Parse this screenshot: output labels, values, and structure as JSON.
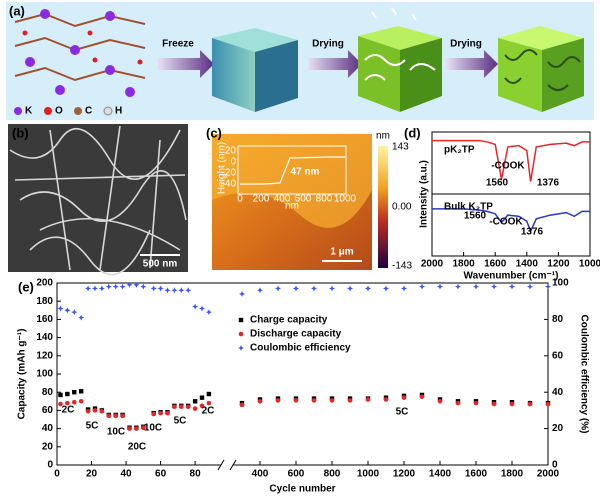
{
  "figure": {
    "a": {
      "label": "(a)",
      "steps": [
        "Freeze",
        "Drying",
        "Drying"
      ],
      "legend": [
        "K",
        "O",
        "C",
        "H"
      ]
    },
    "b": {
      "label": "(b)",
      "scale_bar": "500 nm"
    },
    "c": {
      "label": "(c)",
      "colorbar_unit": "nm",
      "colorbar_labels": [
        "143",
        "0.00",
        "-143"
      ],
      "scale_bar": "1 μm",
      "inset": {
        "ylabel": "Height (nm)",
        "yticks": [
          "20",
          "0",
          "-20",
          "-40"
        ],
        "xticks": [
          "0",
          "200",
          "400",
          "600",
          "800",
          "1000"
        ],
        "xlabel": "nm",
        "annotation": "47 nm"
      }
    }
  },
  "chart_data": [
    {
      "type": "line",
      "panel_label": "(d)",
      "xlabel": "Wavenumber (cm⁻¹)",
      "ylabel": "Intensity (a.u.)",
      "x": [
        2000,
        1900,
        1800,
        1700,
        1650,
        1600,
        1560,
        1520,
        1450,
        1400,
        1376,
        1340,
        1250,
        1150,
        1100,
        1050,
        1000
      ],
      "xlim": [
        2000,
        1000
      ],
      "xticks": [
        2000,
        1800,
        1600,
        1400,
        1200,
        1000
      ],
      "ylim": [
        0,
        1
      ],
      "series": [
        {
          "name": "pK₂TP",
          "color": "#e8262a",
          "values": [
            0.93,
            0.93,
            0.93,
            0.93,
            0.92,
            0.9,
            0.62,
            0.88,
            0.89,
            0.85,
            0.6,
            0.88,
            0.9,
            0.91,
            0.89,
            0.92,
            0.92
          ]
        },
        {
          "name": "Bulk K₂TP",
          "color": "#2b35c8",
          "values": [
            0.38,
            0.38,
            0.38,
            0.37,
            0.36,
            0.34,
            0.27,
            0.33,
            0.32,
            0.28,
            0.2,
            0.3,
            0.33,
            0.35,
            0.32,
            0.36,
            0.36
          ]
        }
      ],
      "annotations": [
        "-COOK",
        "1560",
        "1376",
        "1560",
        "-COOK",
        "1376"
      ]
    },
    {
      "type": "scatter",
      "panel_label": "(e)",
      "xlabel": "Cycle number",
      "ylabel": "Capacity (mAh g⁻¹)",
      "y2label": "Coulombic efficiency (%)",
      "x": [
        2,
        6,
        10,
        14,
        18,
        22,
        26,
        30,
        34,
        38,
        42,
        46,
        50,
        56,
        60,
        64,
        68,
        72,
        76,
        80,
        84,
        88,
        300,
        400,
        500,
        600,
        700,
        800,
        900,
        1000,
        1100,
        1200,
        1300,
        1400,
        1500,
        1600,
        1700,
        1800,
        1900,
        2000
      ],
      "xlim": [
        0,
        2000
      ],
      "xbreak": [
        95,
        250
      ],
      "xticks": [
        0,
        20,
        40,
        60,
        80,
        400,
        600,
        800,
        1000,
        1200,
        1400,
        1600,
        1800,
        2000
      ],
      "ylim": [
        0,
        200
      ],
      "yticks": [
        0,
        20,
        40,
        60,
        80,
        100,
        120,
        140,
        160,
        180,
        200
      ],
      "y2lim": [
        0,
        100
      ],
      "y2ticks": [
        0,
        20,
        40,
        60,
        80,
        100
      ],
      "series": [
        {
          "name": "Charge capacity",
          "color": "#000000",
          "marker": "square",
          "values": [
            77,
            78,
            80,
            81,
            61,
            62,
            60,
            55,
            55,
            55,
            41,
            41,
            42,
            57,
            58,
            58,
            65,
            65,
            65,
            70,
            74,
            78,
            68,
            72,
            73,
            73,
            73,
            73,
            73,
            73,
            74,
            76,
            77,
            72,
            70,
            70,
            69,
            69,
            68,
            68
          ]
        },
        {
          "name": "Discharge capacity",
          "color": "#e8262a",
          "marker": "circle",
          "values": [
            67,
            68,
            69,
            70,
            59,
            60,
            59,
            54,
            54,
            54,
            40,
            40,
            41,
            56,
            57,
            57,
            64,
            64,
            64,
            62,
            65,
            68,
            66,
            70,
            71,
            71,
            71,
            71,
            71,
            72,
            72,
            74,
            75,
            70,
            68,
            68,
            67,
            67,
            67,
            67
          ]
        },
        {
          "name": "Coulombic efficiency",
          "color": "#3355ff",
          "marker": "star",
          "axis": "y2",
          "values": [
            86,
            85,
            84,
            81,
            97,
            97,
            97,
            98,
            98,
            98,
            99,
            99,
            98,
            97,
            97,
            96,
            96,
            96,
            96,
            87,
            86,
            84,
            94,
            96,
            97,
            97,
            97,
            97,
            97,
            97,
            97,
            97,
            98,
            98,
            98,
            98,
            98,
            98,
            98,
            98
          ]
        }
      ],
      "annotations": [
        "2C",
        "5C",
        "10C",
        "20C",
        "10C",
        "5C",
        "2C",
        "5C"
      ]
    }
  ]
}
